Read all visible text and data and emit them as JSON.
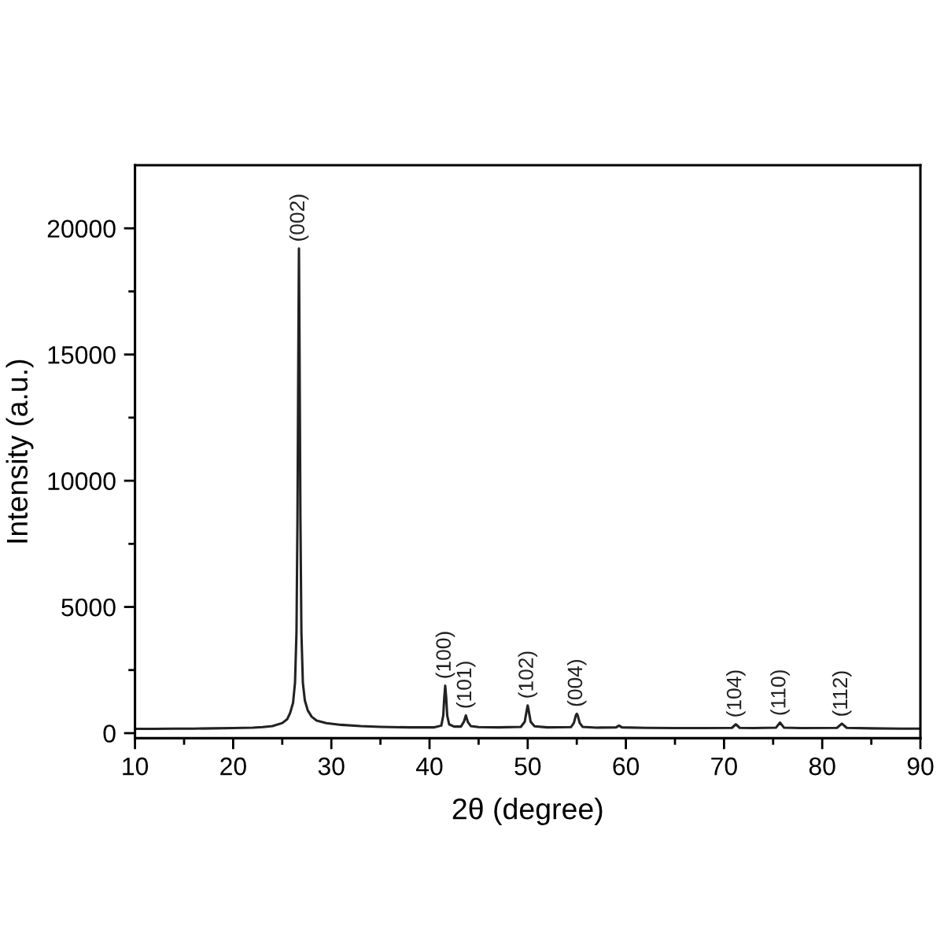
{
  "chart_data": {
    "type": "line",
    "xlabel": "2θ (degree)",
    "ylabel": "Intensity (a.u.)",
    "series": [
      {
        "color": "#222222",
        "x": [
          10,
          12,
          14,
          16,
          18,
          20,
          22,
          23,
          24,
          25,
          25.5,
          25.8,
          26.1,
          26.3,
          26.45,
          26.55,
          26.65,
          26.7,
          26.75,
          26.85,
          26.95,
          27.1,
          27.3,
          27.6,
          28.0,
          28.5,
          29.5,
          31,
          33,
          35,
          38,
          40.5,
          41.2,
          41.4,
          41.5,
          41.6,
          41.7,
          41.8,
          42.0,
          42.5,
          43.2,
          43.5,
          43.7,
          43.9,
          44.2,
          45,
          47,
          49.3,
          49.7,
          49.9,
          50.0,
          50.1,
          50.3,
          50.7,
          52,
          54.4,
          54.7,
          54.9,
          55.0,
          55.1,
          55.3,
          55.6,
          57,
          59.0,
          59.3,
          59.6,
          62,
          65,
          68,
          70.8,
          71.2,
          71.6,
          73,
          75.3,
          75.7,
          76.1,
          78,
          81.5,
          82.0,
          82.5,
          85,
          88,
          90
        ],
        "values": [
          170,
          170,
          180,
          180,
          190,
          200,
          220,
          240,
          280,
          400,
          550,
          800,
          1200,
          2000,
          4000,
          8500,
          16000,
          19200,
          16000,
          8500,
          4000,
          2000,
          1300,
          900,
          650,
          500,
          400,
          330,
          280,
          250,
          230,
          230,
          300,
          700,
          1400,
          1880,
          1400,
          700,
          350,
          260,
          260,
          450,
          700,
          450,
          280,
          240,
          230,
          250,
          450,
          900,
          1100,
          900,
          450,
          270,
          230,
          240,
          400,
          700,
          770,
          700,
          400,
          250,
          220,
          230,
          300,
          230,
          210,
          200,
          200,
          210,
          350,
          210,
          200,
          220,
          420,
          220,
          200,
          210,
          380,
          210,
          190,
          180,
          180
        ]
      }
    ],
    "xlim": [
      10,
      90
    ],
    "ylim": [
      -200,
      22500
    ],
    "xticks": [
      10,
      {
        "value": 15,
        "label": null
      },
      20,
      {
        "value": 25,
        "label": null
      },
      30,
      {
        "value": 35,
        "label": null
      },
      40,
      {
        "value": 45,
        "label": null
      },
      50,
      {
        "value": 55,
        "label": null
      },
      60,
      {
        "value": 65,
        "label": null
      },
      70,
      {
        "value": 75,
        "label": null
      },
      80,
      {
        "value": 85,
        "label": null
      },
      90
    ],
    "yticks": [
      0,
      {
        "value": 2500,
        "label": null
      },
      5000,
      {
        "value": 7500,
        "label": null
      },
      10000,
      {
        "value": 12500,
        "label": null
      },
      15000,
      {
        "value": 17500,
        "label": null
      },
      20000
    ],
    "line_style": "solid",
    "annotations": [
      {
        "text": "(002)",
        "x": 26.7,
        "y": 19200
      },
      {
        "text": "(100)",
        "x": 41.6,
        "y": 1880
      },
      {
        "text": "(101)",
        "x": 43.7,
        "y": 700
      },
      {
        "text": "(102)",
        "x": 50.0,
        "y": 1100
      },
      {
        "text": "(004)",
        "x": 55.0,
        "y": 770
      },
      {
        "text": "(104)",
        "x": 71.2,
        "y": 350
      },
      {
        "text": "(110)",
        "x": 75.7,
        "y": 420
      },
      {
        "text": "(112)",
        "x": 82.0,
        "y": 380
      }
    ]
  }
}
